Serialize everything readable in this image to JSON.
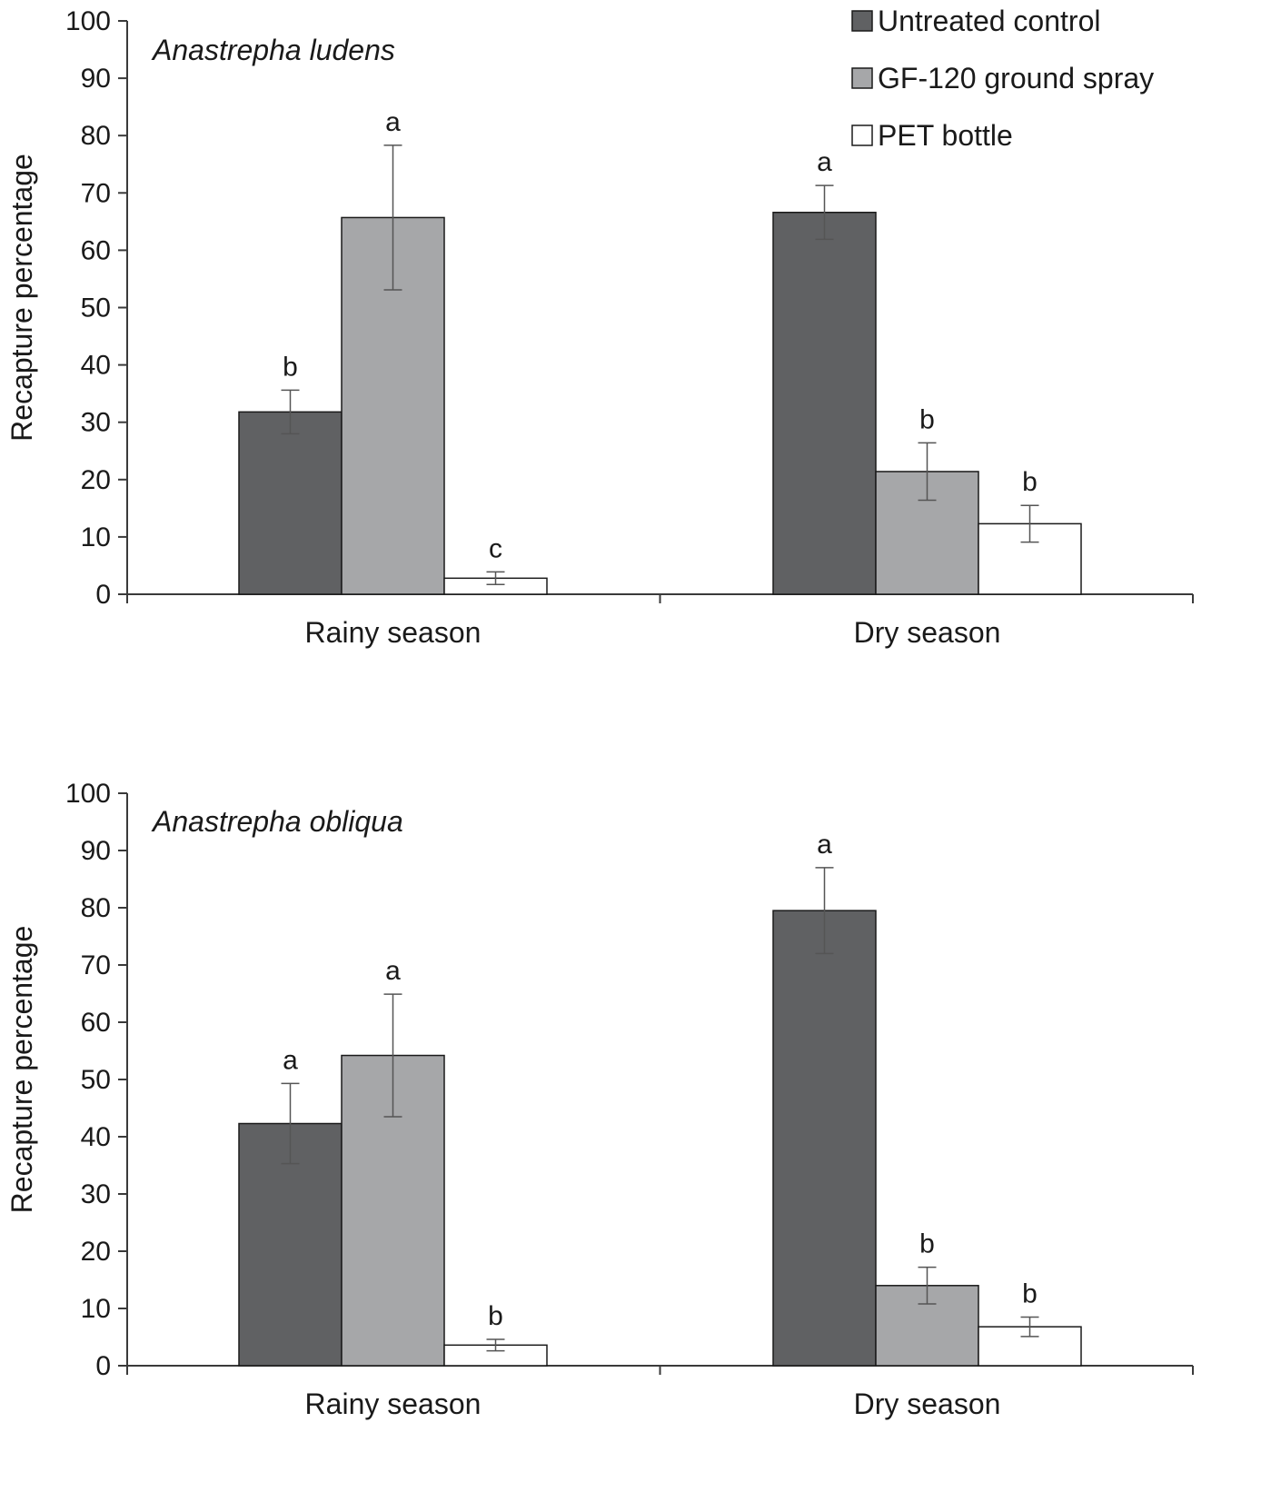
{
  "legend": {
    "entries": [
      "Untreated control",
      "GF-120 ground spray",
      "PET bottle"
    ],
    "colors": [
      "#606163",
      "#a6a7a9",
      "#ffffff"
    ],
    "position": "top-right"
  },
  "chart_data": [
    {
      "type": "bar",
      "title": "Anastrepha ludens",
      "xlabel": "",
      "ylabel": "Recapture percentage",
      "ylim": [
        0,
        100
      ],
      "yticks": [
        0,
        10,
        20,
        30,
        40,
        50,
        60,
        70,
        80,
        90,
        100
      ],
      "categories": [
        "Rainy season",
        "Dry season"
      ],
      "grid": false,
      "series": [
        {
          "name": "Untreated control",
          "values": [
            31.8,
            66.6
          ],
          "errors": [
            3.8,
            4.7
          ],
          "letters": [
            "b",
            "a"
          ]
        },
        {
          "name": "GF-120 ground spray",
          "values": [
            65.7,
            21.4
          ],
          "errors": [
            12.6,
            5.0
          ],
          "letters": [
            "a",
            "b"
          ]
        },
        {
          "name": "PET bottle",
          "values": [
            2.8,
            12.3
          ],
          "errors": [
            1.1,
            3.2
          ],
          "letters": [
            "c",
            "b"
          ]
        }
      ]
    },
    {
      "type": "bar",
      "title": "Anastrepha obliqua",
      "xlabel": "",
      "ylabel": "Recapture percentage",
      "ylim": [
        0,
        100
      ],
      "yticks": [
        0,
        10,
        20,
        30,
        40,
        50,
        60,
        70,
        80,
        90,
        100
      ],
      "categories": [
        "Rainy season",
        "Dry season"
      ],
      "grid": false,
      "series": [
        {
          "name": "Untreated control",
          "values": [
            42.3,
            79.5
          ],
          "errors": [
            7.0,
            7.5
          ],
          "letters": [
            "a",
            "a"
          ]
        },
        {
          "name": "GF-120 ground spray",
          "values": [
            54.2,
            14.0
          ],
          "errors": [
            10.7,
            3.2
          ],
          "letters": [
            "a",
            "b"
          ]
        },
        {
          "name": "PET bottle",
          "values": [
            3.6,
            6.8
          ],
          "errors": [
            1.0,
            1.7
          ],
          "letters": [
            "b",
            "b"
          ]
        }
      ]
    }
  ]
}
